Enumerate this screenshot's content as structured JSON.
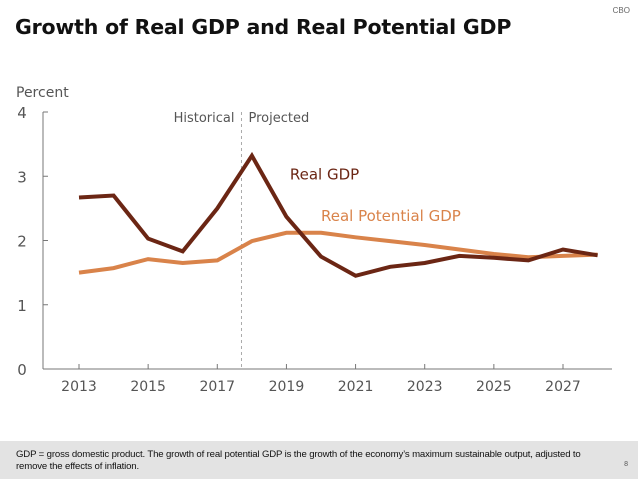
{
  "header": {
    "org": "CBO",
    "title": "Growth of Real GDP and Real Potential GDP"
  },
  "chart_data": {
    "type": "line",
    "title": "Growth of Real GDP and Real Potential GDP",
    "ylabel": "Percent",
    "xlabel": "",
    "x": [
      2013,
      2014,
      2015,
      2016,
      2017,
      2018,
      2019,
      2020,
      2021,
      2022,
      2023,
      2024,
      2025,
      2026,
      2027,
      2028
    ],
    "xticks": [
      "2013",
      "2015",
      "2017",
      "2019",
      "2021",
      "2023",
      "2025",
      "2027"
    ],
    "xtick_values": [
      2013,
      2015,
      2017,
      2019,
      2021,
      2023,
      2025,
      2027
    ],
    "yticks": [
      "0",
      "1",
      "2",
      "3",
      "4"
    ],
    "ylim": [
      0,
      4
    ],
    "xlim": [
      2012.6,
      2028.6
    ],
    "grid": false,
    "divider": {
      "x": 2017.7,
      "left_label": "Historical",
      "right_label": "Projected"
    },
    "series": [
      {
        "name": "Real GDP",
        "color": "#6b2614",
        "values": [
          2.67,
          2.7,
          2.03,
          1.83,
          2.5,
          3.32,
          2.37,
          1.75,
          1.45,
          1.59,
          1.65,
          1.76,
          1.73,
          1.69,
          1.86,
          1.77
        ],
        "label_pos": [
          2019.1,
          2.95
        ]
      },
      {
        "name": "Real Potential GDP",
        "color": "#d9834a",
        "values": [
          1.5,
          1.57,
          1.71,
          1.65,
          1.69,
          1.99,
          2.12,
          2.12,
          2.05,
          1.99,
          1.93,
          1.86,
          1.79,
          1.74,
          1.76,
          1.78
        ],
        "label_pos": [
          2020.0,
          2.3
        ]
      }
    ]
  },
  "footer": {
    "note": "GDP = gross domestic product. The growth of real potential GDP is the growth of the economy’s maximum sustainable output, adjusted to remove the effects of inflation.",
    "page": "8"
  }
}
